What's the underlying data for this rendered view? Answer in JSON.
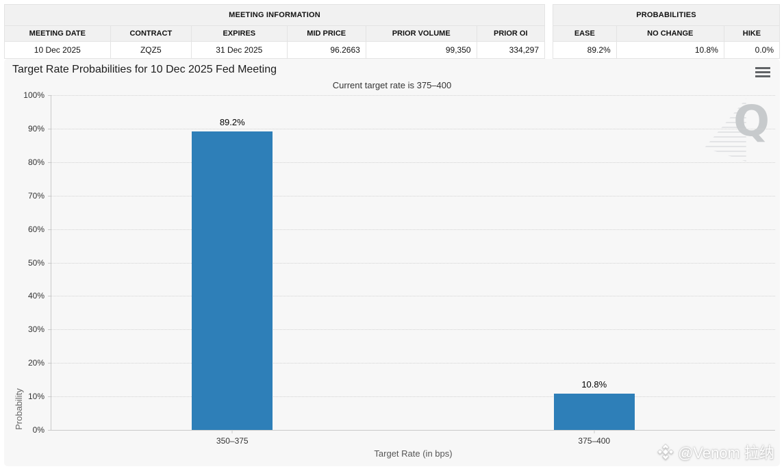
{
  "meeting_information": {
    "title": "MEETING INFORMATION",
    "columns": [
      "MEETING DATE",
      "CONTRACT",
      "EXPIRES",
      "MID PRICE",
      "PRIOR VOLUME",
      "PRIOR OI"
    ],
    "row": [
      "10 Dec 2025",
      "ZQZ5",
      "31 Dec 2025",
      "96.2663",
      "99,350",
      "334,297"
    ]
  },
  "probabilities": {
    "title": "PROBABILITIES",
    "columns": [
      "EASE",
      "NO CHANGE",
      "HIKE"
    ],
    "row": [
      "89.2%",
      "10.8%",
      "0.0%"
    ]
  },
  "chart_data": {
    "type": "bar",
    "title": "Target Rate Probabilities for 10 Dec 2025 Fed Meeting",
    "subtitle": "Current target rate is 375–400",
    "categories": [
      "350–375",
      "375–400"
    ],
    "values": [
      89.2,
      10.8
    ],
    "value_labels": [
      "89.2%",
      "10.8%"
    ],
    "xlabel": "Target Rate (in bps)",
    "ylabel": "Probability",
    "ylim": [
      0,
      100
    ],
    "ytick_step": 10,
    "ytick_labels": [
      "0%",
      "10%",
      "20%",
      "30%",
      "40%",
      "50%",
      "60%",
      "70%",
      "80%",
      "90%",
      "100%"
    ],
    "bar_color": "#2e7fb8",
    "grid": "horizontal-dotted",
    "legend": "none"
  },
  "icons": {
    "menu": "hamburger-icon",
    "credit_logo": "diamond-logo-icon"
  },
  "watermarks": {
    "corner_letter": "Q",
    "credit": "@Venom 拉纳"
  },
  "colors": {
    "bar": "#2e7fb8",
    "chart_background": "#f7f7f7",
    "table_header_background": "#f1f1f1",
    "axis": "#c9c9c9",
    "gridline": "#d2d2d2"
  }
}
